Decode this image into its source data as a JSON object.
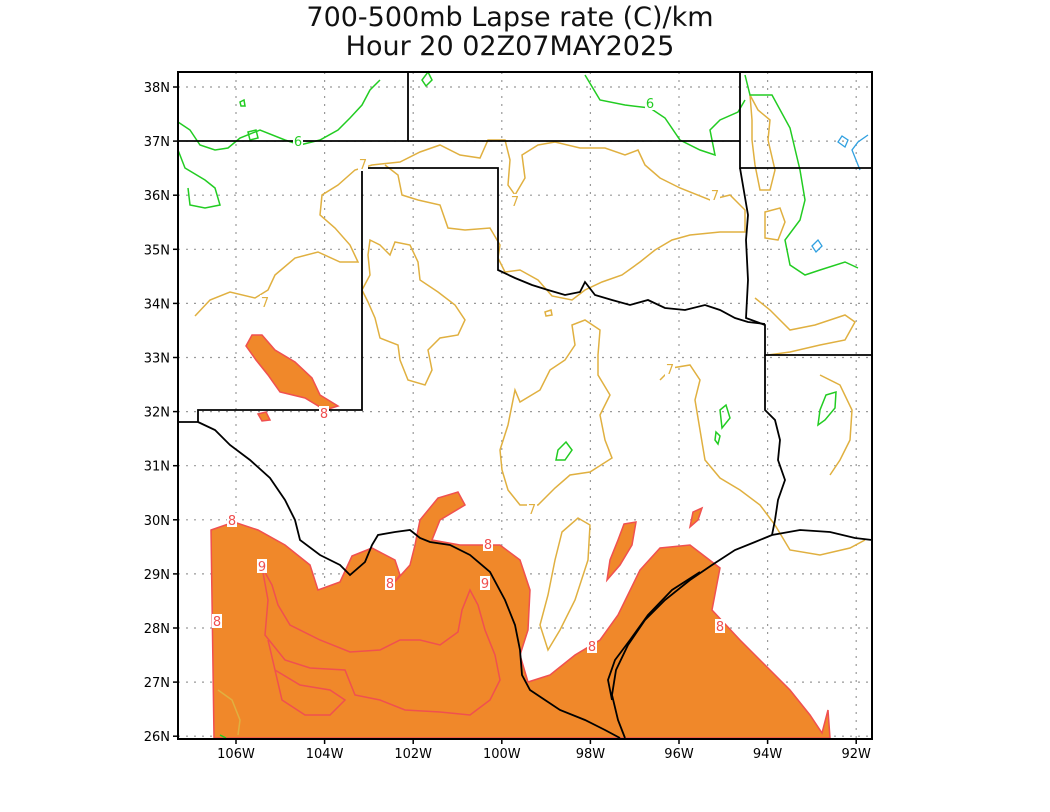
{
  "title": {
    "line1": "700-500mb Lapse rate (C)/km",
    "line2": "Hour 20 02Z07MAY2025"
  },
  "map": {
    "lat_ticks": [
      "38N",
      "37N",
      "36N",
      "35N",
      "34N",
      "33N",
      "32N",
      "31N",
      "30N",
      "29N",
      "28N",
      "27N",
      "26N"
    ],
    "lon_ticks": [
      "106W",
      "104W",
      "102W",
      "100W",
      "98W",
      "96W",
      "94W",
      "92W"
    ],
    "lat_range": [
      25.9,
      38.3
    ],
    "lon_range": [
      -107.2,
      -91.7
    ],
    "grid": true,
    "colors": {
      "contour_6": "#22cc22",
      "contour_7": "#e0b040",
      "contour_8": "#f05050",
      "contour_9": "#f05050",
      "contour_low": "#30a0e0",
      "fill_8": "#f0882a",
      "grid": "#999999",
      "border": "#000000"
    },
    "contour_labels": [
      {
        "text": "6",
        "color": "#22cc22"
      },
      {
        "text": "6",
        "color": "#22cc22"
      },
      {
        "text": "7",
        "color": "#e0b040"
      },
      {
        "text": "7",
        "color": "#e0b040"
      },
      {
        "text": "7",
        "color": "#e0b040"
      },
      {
        "text": "7",
        "color": "#e0b040"
      },
      {
        "text": "7",
        "color": "#e0b040"
      },
      {
        "text": "7",
        "color": "#e0b040"
      },
      {
        "text": "8",
        "color": "#f05050"
      },
      {
        "text": "8",
        "color": "#f05050"
      },
      {
        "text": "8",
        "color": "#f05050"
      },
      {
        "text": "8",
        "color": "#f05050"
      },
      {
        "text": "8",
        "color": "#f05050"
      },
      {
        "text": "8",
        "color": "#f05050"
      },
      {
        "text": "8",
        "color": "#f05050"
      },
      {
        "text": "9",
        "color": "#f05050"
      },
      {
        "text": "9",
        "color": "#f05050"
      }
    ]
  }
}
